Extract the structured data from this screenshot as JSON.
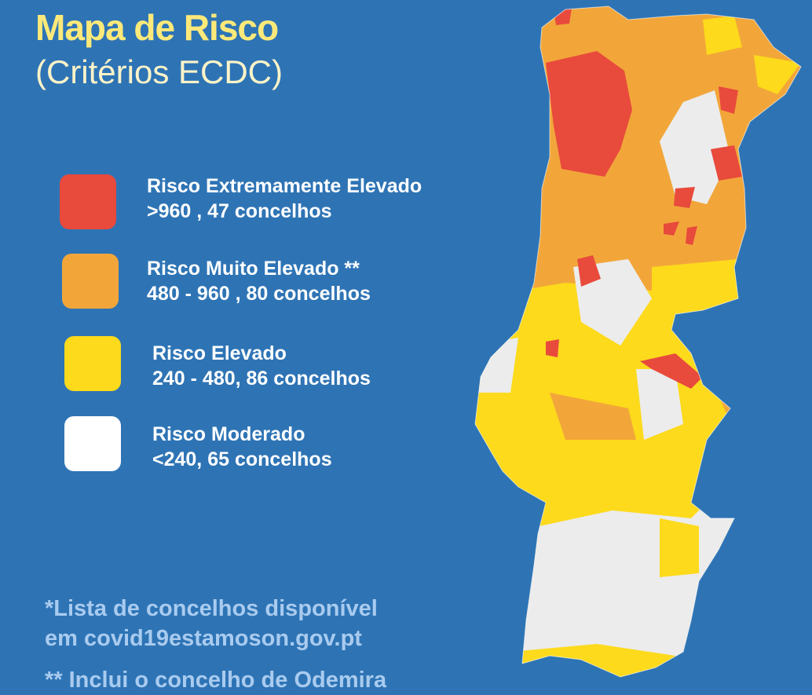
{
  "title": "Mapa de Risco",
  "subtitle": "(Critérios ECDC)",
  "legend": [
    {
      "label": "Risco Extremamente Elevado",
      "detail": ">960 , 47 concelhos",
      "color": "#e84a3c"
    },
    {
      "label": "Risco Muito Elevado  **",
      "detail": "480 - 960 , 80 concelhos",
      "color": "#f2a63a"
    },
    {
      "label": "Risco Elevado",
      "detail": "240 - 480, 86 concelhos",
      "color": "#fdda1c"
    },
    {
      "label": "Risco Moderado",
      "detail": "<240, 65 concelhos",
      "color": "#ffffff"
    }
  ],
  "notes": {
    "line1": "*Lista de concelhos disponível",
    "line2": "em covid19estamoson.gov.pt",
    "line3": "** Inclui o concelho de Odemira"
  },
  "map_colors": {
    "extreme": "#e84a3c",
    "very_high": "#f2a63a",
    "high": "#fdda1c",
    "moderate": "#ececec",
    "background": "#2e74b5"
  }
}
